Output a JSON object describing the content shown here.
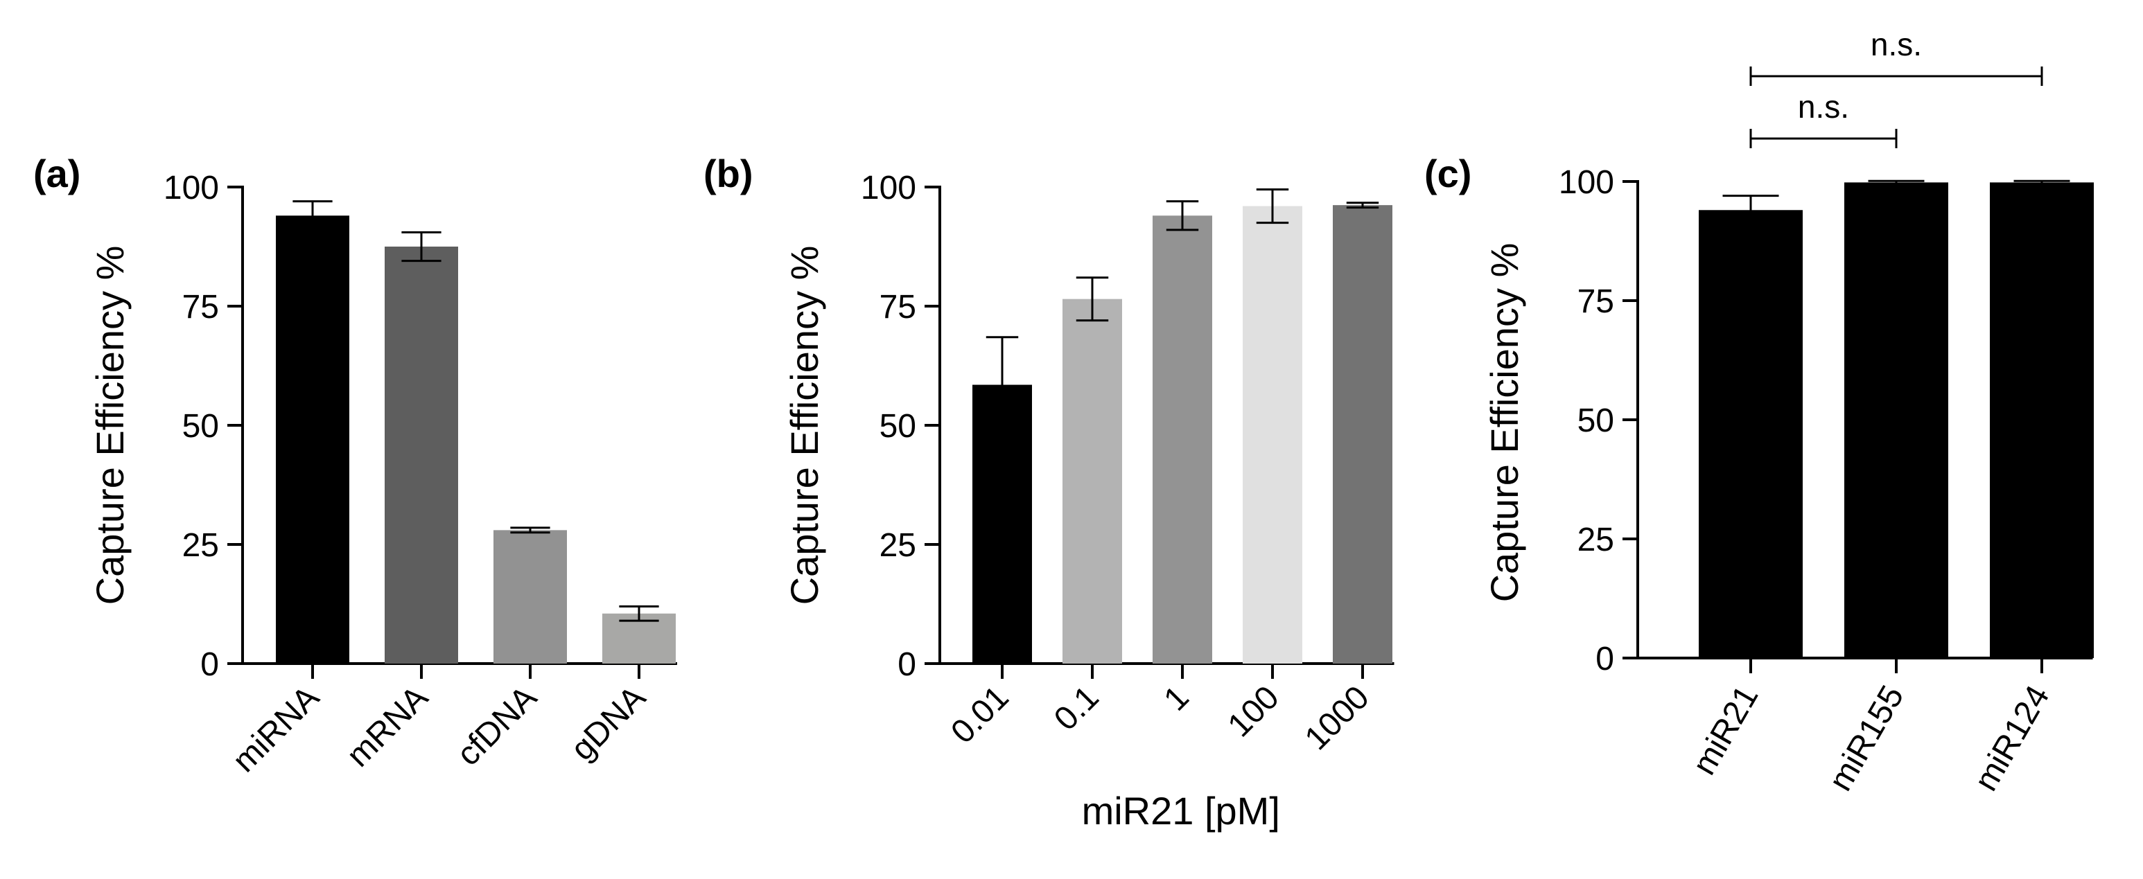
{
  "chart_data": [
    {
      "type": "bar",
      "panel_label": "(a)",
      "categories": [
        "miRNA",
        "mRNA",
        "cfDNA",
        "gDNA"
      ],
      "values": [
        94,
        87.5,
        28,
        10.5
      ],
      "errors": [
        3,
        3,
        0.5,
        1.5
      ],
      "bar_colors": [
        "#000000",
        "#5e5e5e",
        "#929292",
        "#a8a8a6"
      ],
      "ylabel": "Capture Efficiency %",
      "xlabel": "",
      "ylim": [
        0,
        100
      ],
      "yticks": [
        "0",
        "25",
        "50",
        "75",
        "100"
      ]
    },
    {
      "type": "bar",
      "panel_label": "(b)",
      "categories": [
        "0.01",
        "0.1",
        "1",
        "100",
        "1000"
      ],
      "values": [
        58.5,
        76.5,
        94,
        96,
        96.2
      ],
      "errors": [
        10,
        4.5,
        3,
        3.5,
        0.5
      ],
      "bar_colors": [
        "#000000",
        "#b3b3b3",
        "#939393",
        "#e0e0e0",
        "#737373"
      ],
      "ylabel": "Capture Efficiency %",
      "xlabel": "miR21 [pM]",
      "ylim": [
        0,
        100
      ],
      "yticks": [
        "0",
        "25",
        "50",
        "75",
        "100"
      ]
    },
    {
      "type": "bar",
      "panel_label": "(c)",
      "categories": [
        "miR21",
        "miR155",
        "miR124"
      ],
      "values": [
        94,
        99.8,
        99.8
      ],
      "errors": [
        3,
        0.3,
        0.3
      ],
      "bar_colors": [
        "#000000",
        "#000000",
        "#000000"
      ],
      "ylabel": "Capture Efficiency %",
      "xlabel": "",
      "ylim": [
        0,
        100
      ],
      "yticks": [
        "0",
        "25",
        "50",
        "75",
        "100"
      ],
      "significance": [
        {
          "from": 0,
          "to": 1,
          "label": "n.s."
        },
        {
          "from": 0,
          "to": 2,
          "label": "n.s."
        }
      ]
    }
  ]
}
